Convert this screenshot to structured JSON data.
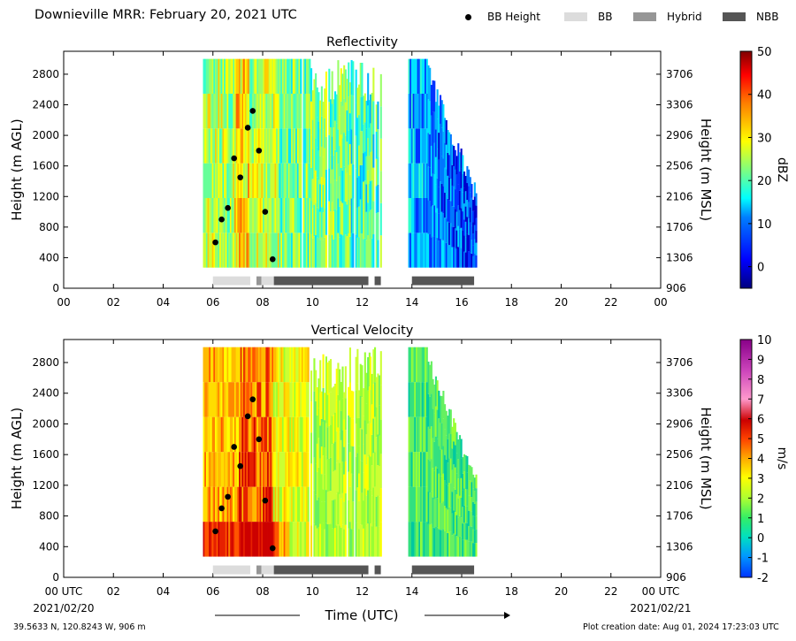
{
  "header": {
    "title": "Downieville MRR:  February 20, 2021 UTC"
  },
  "legend": [
    {
      "label": "BB Height",
      "kind": "dot",
      "color": "#000000"
    },
    {
      "label": "BB",
      "kind": "swatch",
      "color": "#dcdcdc"
    },
    {
      "label": "Hybrid",
      "kind": "swatch",
      "color": "#969696"
    },
    {
      "label": "NBB",
      "kind": "swatch",
      "color": "#555555"
    }
  ],
  "footer": {
    "location": "39.5633 N, 120.8243 W, 906 m",
    "created": "Plot creation date: Aug 01, 2024 17:23:03 UTC",
    "start_date": "2021/02/20",
    "end_date": "2021/02/21",
    "xlabel": "Time (UTC)"
  },
  "chart_data": [
    {
      "type": "heatmap",
      "title": "Reflectivity",
      "ylabel_left": "Height (m AGL)",
      "ylabel_right": "Height (m MSL)",
      "xlim": [
        0,
        24
      ],
      "ylim": [
        0,
        3100
      ],
      "x_ticks": [
        "00",
        "02",
        "04",
        "06",
        "08",
        "10",
        "12",
        "14",
        "16",
        "18",
        "20",
        "22",
        "00"
      ],
      "y_ticks": [
        0,
        400,
        800,
        1200,
        1600,
        2000,
        2400,
        2800
      ],
      "y_ticks_right": [
        906,
        1306,
        1706,
        2106,
        2506,
        2906,
        3306,
        3706
      ],
      "colorbar": {
        "label": "dBZ",
        "min": -5,
        "max": 50,
        "ticks": [
          0,
          10,
          20,
          30,
          40,
          50
        ]
      },
      "data_segments": [
        [
          5.6,
          12.3
        ],
        [
          12.3,
          12.75
        ],
        [
          13.85,
          16.6
        ]
      ],
      "bright_band_heights": [
        {
          "time": 6.1,
          "height": 600
        },
        {
          "time": 6.35,
          "height": 900
        },
        {
          "time": 6.6,
          "height": 1050
        },
        {
          "time": 6.85,
          "height": 1700
        },
        {
          "time": 7.1,
          "height": 1450
        },
        {
          "time": 7.4,
          "height": 2100
        },
        {
          "time": 7.6,
          "height": 2320
        },
        {
          "time": 7.85,
          "height": 1800
        },
        {
          "time": 8.1,
          "height": 1000
        },
        {
          "time": 8.4,
          "height": 380
        }
      ],
      "classification_bars": [
        {
          "start": 6.0,
          "end": 7.5,
          "class": "BB"
        },
        {
          "start": 7.75,
          "end": 7.95,
          "class": "Hybrid"
        },
        {
          "start": 7.95,
          "end": 8.45,
          "class": "BB"
        },
        {
          "start": 8.45,
          "end": 12.25,
          "class": "NBB"
        },
        {
          "start": 12.5,
          "end": 12.75,
          "class": "NBB"
        },
        {
          "start": 14.0,
          "end": 16.5,
          "class": "NBB"
        }
      ]
    },
    {
      "type": "heatmap",
      "title": "Vertical Velocity",
      "ylabel_left": "Height (m AGL)",
      "ylabel_right": "Height (m MSL)",
      "xlim": [
        0,
        24
      ],
      "ylim": [
        0,
        3100
      ],
      "x_ticks": [
        "00 UTC",
        "02",
        "04",
        "06",
        "08",
        "10",
        "12",
        "14",
        "16",
        "18",
        "20",
        "22",
        "00 UTC"
      ],
      "y_ticks": [
        0,
        400,
        800,
        1200,
        1600,
        2000,
        2400,
        2800
      ],
      "y_ticks_right": [
        906,
        1306,
        1706,
        2106,
        2506,
        2906,
        3306,
        3706
      ],
      "colorbar": {
        "label": "m/s",
        "min": -2,
        "max": 10,
        "ticks": [
          -2,
          -1,
          0,
          1,
          2,
          3,
          4,
          5,
          6,
          7,
          8,
          9,
          10
        ]
      },
      "data_segments": [
        [
          5.6,
          12.3
        ],
        [
          12.3,
          12.75
        ],
        [
          13.85,
          16.6
        ]
      ],
      "bright_band_heights": [
        {
          "time": 6.1,
          "height": 600
        },
        {
          "time": 6.35,
          "height": 900
        },
        {
          "time": 6.6,
          "height": 1050
        },
        {
          "time": 6.85,
          "height": 1700
        },
        {
          "time": 7.1,
          "height": 1450
        },
        {
          "time": 7.4,
          "height": 2100
        },
        {
          "time": 7.6,
          "height": 2320
        },
        {
          "time": 7.85,
          "height": 1800
        },
        {
          "time": 8.1,
          "height": 1000
        },
        {
          "time": 8.4,
          "height": 380
        }
      ],
      "classification_bars": [
        {
          "start": 6.0,
          "end": 7.5,
          "class": "BB"
        },
        {
          "start": 7.75,
          "end": 7.95,
          "class": "Hybrid"
        },
        {
          "start": 7.95,
          "end": 8.45,
          "class": "BB"
        },
        {
          "start": 8.45,
          "end": 12.25,
          "class": "NBB"
        },
        {
          "start": 12.5,
          "end": 12.75,
          "class": "NBB"
        },
        {
          "start": 14.0,
          "end": 16.5,
          "class": "NBB"
        }
      ]
    }
  ]
}
